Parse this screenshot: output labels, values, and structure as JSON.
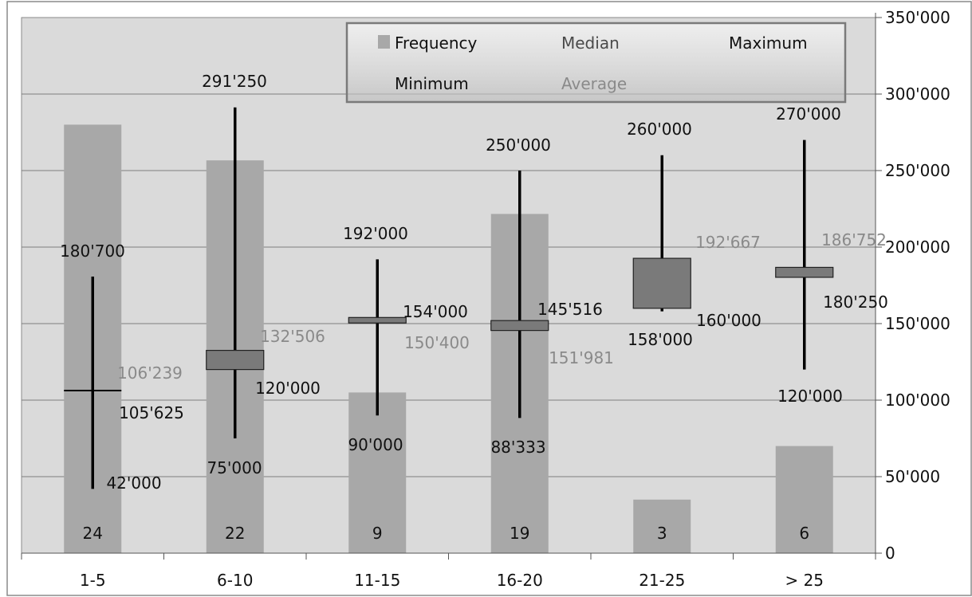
{
  "chart_data": {
    "type": "bar",
    "categories": [
      "1-5",
      "6-10",
      "11-15",
      "16-20",
      "21-25",
      "> 25"
    ],
    "series": [
      {
        "name": "Frequency",
        "values": [
          24,
          22,
          9,
          19,
          3,
          6
        ]
      },
      {
        "name": "Median",
        "values": [
          105625,
          120000,
          150400,
          145516,
          160000,
          180250
        ]
      },
      {
        "name": "Maximum",
        "values": [
          180700,
          291250,
          192000,
          250000,
          260000,
          270000
        ]
      },
      {
        "name": "Minimum",
        "values": [
          42000,
          75000,
          90000,
          88333,
          158000,
          120000
        ]
      },
      {
        "name": "Average",
        "values": [
          106239,
          132506,
          154000,
          151981,
          192667,
          186752
        ]
      }
    ],
    "labels": {
      "frequency": [
        "24",
        "22",
        "9",
        "19",
        "3",
        "6"
      ],
      "median": [
        "105'625",
        "120'000",
        "150'400",
        "145'516",
        "160'000",
        "180'250"
      ],
      "maximum": [
        "180'700",
        "291'250",
        "192'000",
        "250'000",
        "260'000",
        "270'000"
      ],
      "minimum": [
        "42'000",
        "75'000",
        "90'000",
        "88'333",
        "158'000",
        "120'000"
      ],
      "average": [
        "106'239",
        "132'506",
        "154'000",
        "151'981",
        "192'667",
        "186'752"
      ]
    },
    "y_ticks": [
      0,
      50000,
      100000,
      150000,
      200000,
      250000,
      300000,
      350000
    ],
    "y_tick_labels": [
      "0",
      "50'000",
      "100'000",
      "150'000",
      "200'000",
      "250'000",
      "300'000",
      "350'000"
    ],
    "ylim": [
      0,
      350000
    ],
    "frequency_ylim": [
      0,
      30
    ],
    "y_axis_side": "right",
    "grid": true,
    "legend_position": "top-center",
    "title": "",
    "xlabel": "",
    "ylabel": ""
  },
  "legend": {
    "frequency": "Frequency",
    "median": "Median",
    "maximum": "Maximum",
    "minimum": "Minimum",
    "average": "Average"
  },
  "colors": {
    "plot_bg": "#dadada",
    "bar": "#a8a8a8",
    "box": "#7a7a7a",
    "gridline": "#7f7f7f",
    "dark_text": "#111111",
    "light_text": "#8a8a8a"
  }
}
